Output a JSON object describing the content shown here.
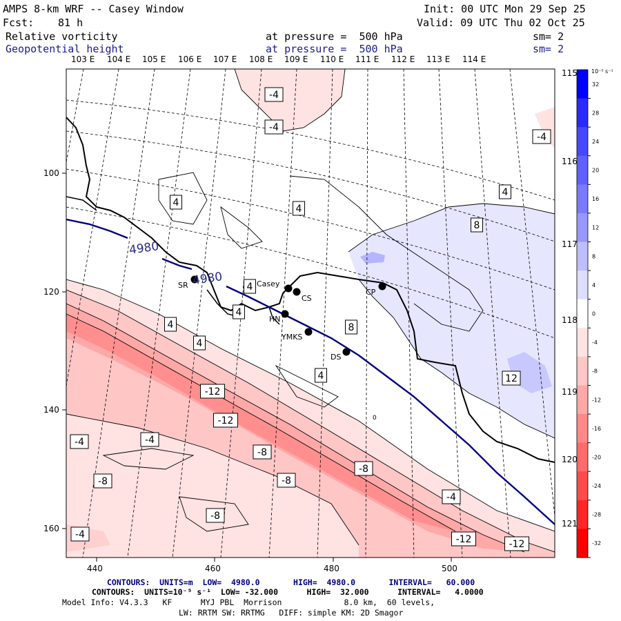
{
  "header": {
    "title": "AMPS 8-km WRF -- Casey Window",
    "init": "Init: 00 UTC Mon 29 Sep 25",
    "fcst_label": "Fcst:",
    "fcst_value": "81 h",
    "valid": "Valid: 09 UTC Thu 02 Oct 25",
    "field1": {
      "name": "Relative vorticity",
      "pressure": "at pressure =  500 hPa",
      "sm": "sm= 2"
    },
    "field2": {
      "name": "Geopotential height",
      "pressure": "at pressure =  500 hPa",
      "sm": "sm= 2"
    }
  },
  "map": {
    "top_lon_labels": [
      "103 E",
      "104 E",
      "105 E",
      "106 E",
      "107 E",
      "108 E",
      "109 E",
      "110 E",
      "111 E",
      "112 E",
      "113 E",
      "114 E"
    ],
    "right_lon_labels": [
      "115 E",
      "116 E",
      "117 E",
      "118 E",
      "119 E",
      "120 E",
      "121 E"
    ],
    "x_ticks": [
      "440",
      "460",
      "480",
      "500"
    ],
    "y_ticks": [
      "100",
      "120",
      "140",
      "160"
    ],
    "stations": [
      {
        "code": "SR"
      },
      {
        "code": "Casey"
      },
      {
        "code": "CS"
      },
      {
        "code": "HN"
      },
      {
        "code": "YMKS"
      },
      {
        "code": "DS"
      },
      {
        "code": "CP"
      }
    ],
    "height_labels": [
      "4980",
      "4980"
    ],
    "contour_labels": [
      "-4",
      "-4",
      "-4",
      "4",
      "4",
      "8",
      "4",
      "4",
      "4",
      "4",
      "4",
      "8",
      "12",
      "4",
      "-12",
      "-12",
      "-8",
      "-8",
      "-8",
      "-8",
      "-4",
      "-4",
      "-4",
      "-8",
      "-4",
      "-12",
      "-12",
      "0"
    ]
  },
  "colorbar": {
    "unit_label": "10⁻⁵ s⁻¹",
    "ticks": [
      "32",
      "28",
      "24",
      "20",
      "16",
      "12",
      "8",
      "4",
      "0",
      "-4",
      "-8",
      "-12",
      "-16",
      "-20",
      "-24",
      "-28",
      "-32"
    ],
    "colors": [
      "#0000ff",
      "#2a2aff",
      "#4747ff",
      "#6060ff",
      "#7a7aff",
      "#9797ff",
      "#bdbdff",
      "#dedeff",
      "#ffffff",
      "#ffe2e2",
      "#ffc6c6",
      "#ffa8a8",
      "#ff8888",
      "#ff6a6a",
      "#ff4a4a",
      "#ff2626",
      "#ff0000"
    ]
  },
  "footer": {
    "line1": "CONTOURS:  UNITS=m  LOW=  4980.0       HIGH=  4980.0       INTERVAL=   60.000",
    "line2": "CONTOURS:  UNITS=10⁻⁵ s⁻¹  LOW= -32.000      HIGH=  32.000      INTERVAL=   4.0000",
    "line3": "Model Info: V4.3.3   KF      MYJ PBL  Morrison             8.0 km,  60 levels,",
    "line4": "LW: RRTM SW: RRTMG   DIFF: simple KM: 2D Smagor"
  }
}
